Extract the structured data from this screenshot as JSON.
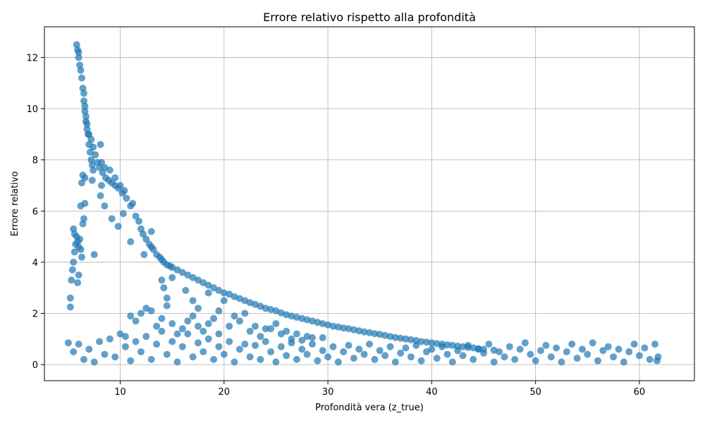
{
  "chart_data": {
    "type": "scatter",
    "title": "Errore relativo rispetto alla profondità",
    "xlabel": "Profondità vera (z_true)",
    "ylabel": "Errore relativo",
    "xlim": [
      2.7,
      65.3
    ],
    "ylim": [
      -0.63,
      13.2
    ],
    "xticks": [
      10,
      20,
      30,
      40,
      50,
      60
    ],
    "yticks": [
      0,
      2,
      4,
      6,
      8,
      10,
      12
    ],
    "grid": true,
    "marker_color": "#1f77b4",
    "marker_alpha": 0.7,
    "series": [
      {
        "points": [
          [
            5.8,
            12.5
          ],
          [
            5.9,
            12.3
          ],
          [
            6.0,
            12.0
          ],
          [
            6.1,
            11.7
          ],
          [
            6.3,
            11.2
          ],
          [
            6.4,
            10.8
          ],
          [
            6.5,
            10.3
          ],
          [
            6.6,
            9.9
          ],
          [
            6.7,
            9.5
          ],
          [
            6.8,
            9.2
          ],
          [
            7.0,
            9.0
          ],
          [
            7.2,
            8.8
          ],
          [
            7.4,
            8.5
          ],
          [
            7.6,
            8.2
          ],
          [
            7.8,
            7.9
          ],
          [
            8.0,
            7.7
          ],
          [
            8.3,
            7.5
          ],
          [
            8.6,
            7.3
          ],
          [
            8.9,
            7.2
          ],
          [
            9.2,
            7.1
          ],
          [
            9.5,
            7.0
          ],
          [
            9.8,
            6.9
          ],
          [
            10.2,
            6.7
          ],
          [
            10.6,
            6.5
          ],
          [
            11.0,
            6.2
          ],
          [
            11.5,
            5.8
          ],
          [
            12.0,
            5.3
          ],
          [
            12.5,
            4.9
          ],
          [
            13.0,
            4.6
          ],
          [
            13.5,
            4.3
          ],
          [
            14.0,
            4.1
          ],
          [
            14.5,
            3.9
          ],
          [
            15.0,
            3.8
          ],
          [
            16.0,
            3.6
          ],
          [
            17.0,
            3.4
          ],
          [
            18.0,
            3.2
          ],
          [
            19.0,
            3.0
          ],
          [
            20.0,
            2.8
          ],
          [
            21.0,
            2.65
          ],
          [
            22.0,
            2.5
          ],
          [
            23.0,
            2.35
          ],
          [
            24.0,
            2.2
          ],
          [
            25.0,
            2.1
          ],
          [
            26.0,
            1.95
          ],
          [
            27.0,
            1.85
          ],
          [
            28.0,
            1.75
          ],
          [
            29.0,
            1.65
          ],
          [
            30.0,
            1.55
          ],
          [
            31.0,
            1.47
          ],
          [
            32.0,
            1.4
          ],
          [
            33.0,
            1.32
          ],
          [
            34.0,
            1.25
          ],
          [
            35.0,
            1.18
          ],
          [
            36.0,
            1.1
          ],
          [
            37.0,
            1.03
          ],
          [
            38.0,
            0.97
          ],
          [
            39.0,
            0.9
          ],
          [
            40.0,
            0.85
          ],
          [
            41.0,
            0.8
          ],
          [
            42.0,
            0.75
          ],
          [
            43.0,
            0.7
          ],
          [
            44.0,
            0.65
          ],
          [
            45.0,
            0.6
          ],
          [
            46.0,
            0.56
          ],
          [
            6.0,
            12.2
          ],
          [
            6.2,
            11.5
          ],
          [
            6.5,
            10.6
          ],
          [
            6.6,
            10.1
          ],
          [
            6.7,
            9.7
          ],
          [
            6.8,
            9.4
          ],
          [
            6.9,
            9.0
          ],
          [
            7.0,
            8.6
          ],
          [
            7.1,
            8.3
          ],
          [
            7.2,
            8.0
          ],
          [
            7.3,
            7.8
          ],
          [
            7.4,
            7.6
          ],
          [
            8.2,
            7.9
          ],
          [
            8.5,
            7.7
          ],
          [
            9.0,
            7.6
          ],
          [
            9.5,
            7.3
          ],
          [
            10.0,
            7.0
          ],
          [
            10.4,
            6.8
          ],
          [
            11.2,
            6.3
          ],
          [
            11.8,
            5.6
          ],
          [
            12.2,
            5.1
          ],
          [
            12.8,
            4.7
          ],
          [
            13.2,
            4.5
          ],
          [
            13.8,
            4.2
          ],
          [
            14.2,
            4.0
          ],
          [
            14.8,
            3.85
          ],
          [
            15.5,
            3.7
          ],
          [
            16.5,
            3.5
          ],
          [
            17.5,
            3.3
          ],
          [
            18.5,
            3.1
          ],
          [
            19.5,
            2.9
          ],
          [
            20.5,
            2.75
          ],
          [
            21.5,
            2.58
          ],
          [
            22.5,
            2.42
          ],
          [
            23.5,
            2.28
          ],
          [
            24.5,
            2.15
          ],
          [
            25.5,
            2.02
          ],
          [
            26.5,
            1.9
          ],
          [
            27.5,
            1.8
          ],
          [
            28.5,
            1.7
          ],
          [
            29.5,
            1.6
          ],
          [
            30.5,
            1.5
          ],
          [
            31.5,
            1.43
          ],
          [
            32.5,
            1.36
          ],
          [
            33.5,
            1.28
          ],
          [
            34.5,
            1.21
          ],
          [
            35.5,
            1.14
          ],
          [
            36.5,
            1.06
          ],
          [
            37.5,
            1.0
          ],
          [
            38.5,
            0.94
          ],
          [
            39.5,
            0.88
          ],
          [
            40.5,
            0.82
          ],
          [
            41.5,
            0.77
          ],
          [
            42.5,
            0.72
          ],
          [
            43.5,
            0.67
          ],
          [
            44.5,
            0.62
          ],
          [
            5.3,
            3.3
          ],
          [
            5.4,
            3.7
          ],
          [
            5.5,
            4.0
          ],
          [
            5.6,
            4.4
          ],
          [
            5.7,
            4.7
          ],
          [
            5.8,
            5.0
          ],
          [
            5.9,
            4.8
          ],
          [
            6.0,
            4.6
          ],
          [
            6.1,
            4.9
          ],
          [
            6.2,
            4.5
          ],
          [
            6.3,
            4.2
          ],
          [
            5.5,
            5.3
          ],
          [
            5.6,
            5.1
          ],
          [
            6.4,
            5.5
          ],
          [
            6.5,
            5.7
          ],
          [
            6.6,
            6.3
          ],
          [
            6.2,
            6.2
          ],
          [
            6.3,
            7.1
          ],
          [
            6.4,
            7.4
          ],
          [
            6.6,
            7.3
          ],
          [
            7.3,
            7.2
          ],
          [
            7.5,
            4.3
          ],
          [
            8.1,
            8.6
          ],
          [
            8.2,
            7.0
          ],
          [
            8.1,
            6.6
          ],
          [
            8.5,
            6.2
          ],
          [
            9.2,
            5.7
          ],
          [
            9.8,
            5.4
          ],
          [
            10.3,
            5.9
          ],
          [
            11.0,
            4.8
          ],
          [
            12.3,
            4.3
          ],
          [
            13.0,
            5.2
          ],
          [
            14.0,
            3.3
          ],
          [
            14.2,
            3.0
          ],
          [
            14.5,
            2.6
          ],
          [
            15.0,
            3.4
          ],
          [
            16.3,
            2.9
          ],
          [
            17.0,
            2.5
          ],
          [
            17.5,
            2.2
          ],
          [
            18.5,
            2.8
          ],
          [
            19.5,
            2.1
          ],
          [
            20.0,
            2.5
          ],
          [
            21.0,
            1.9
          ],
          [
            22.0,
            2.0
          ],
          [
            23.0,
            1.5
          ],
          [
            24.0,
            1.4
          ],
          [
            25.0,
            1.6
          ],
          [
            26.0,
            1.3
          ],
          [
            27.0,
            1.2
          ],
          [
            28.0,
            1.1
          ],
          [
            29.5,
            1.05
          ],
          [
            5.2,
            2.6
          ],
          [
            5.2,
            2.25
          ],
          [
            5.9,
            3.2
          ],
          [
            6.0,
            3.5
          ],
          [
            10.5,
            1.1
          ],
          [
            11.0,
            1.9
          ],
          [
            11.5,
            1.7
          ],
          [
            12.0,
            2.0
          ],
          [
            12.5,
            2.2
          ],
          [
            13.0,
            2.1
          ],
          [
            13.5,
            1.5
          ],
          [
            14.0,
            1.8
          ],
          [
            14.5,
            2.3
          ],
          [
            15.0,
            1.6
          ],
          [
            15.5,
            1.2
          ],
          [
            16.0,
            1.4
          ],
          [
            16.5,
            1.7
          ],
          [
            17.0,
            1.9
          ],
          [
            17.5,
            1.5
          ],
          [
            18.0,
            1.3
          ],
          [
            18.5,
            1.6
          ],
          [
            19.0,
            1.8
          ],
          [
            19.5,
            1.2
          ],
          [
            20.5,
            1.5
          ],
          [
            21.5,
            1.7
          ],
          [
            22.5,
            1.3
          ],
          [
            23.5,
            1.1
          ],
          [
            24.5,
            1.4
          ],
          [
            25.5,
            1.2
          ],
          [
            26.5,
            1.0
          ],
          [
            27.5,
            0.95
          ],
          [
            28.5,
            1.05
          ],
          [
            5.0,
            0.85
          ],
          [
            5.5,
            0.5
          ],
          [
            6.0,
            0.8
          ],
          [
            6.5,
            0.2
          ],
          [
            7.0,
            0.6
          ],
          [
            7.5,
            0.1
          ],
          [
            8.0,
            0.9
          ],
          [
            8.5,
            0.4
          ],
          [
            9.0,
            1.0
          ],
          [
            9.5,
            0.3
          ],
          [
            10.0,
            1.2
          ],
          [
            10.5,
            0.7
          ],
          [
            11.0,
            0.15
          ],
          [
            11.5,
            0.9
          ],
          [
            12.0,
            0.5
          ],
          [
            12.5,
            1.1
          ],
          [
            13.0,
            0.2
          ],
          [
            13.5,
            0.8
          ],
          [
            14.0,
            1.3
          ],
          [
            14.5,
            0.4
          ],
          [
            15.0,
            0.9
          ],
          [
            15.5,
            0.1
          ],
          [
            16.0,
            0.7
          ],
          [
            16.5,
            1.2
          ],
          [
            17.0,
            0.3
          ],
          [
            17.5,
            0.85
          ],
          [
            18.0,
            0.5
          ],
          [
            18.5,
            1.0
          ],
          [
            19.0,
            0.2
          ],
          [
            19.5,
            0.7
          ],
          [
            20.0,
            0.4
          ],
          [
            20.5,
            0.9
          ],
          [
            21.0,
            0.1
          ],
          [
            21.5,
            0.6
          ],
          [
            22.0,
            0.8
          ],
          [
            22.5,
            0.3
          ],
          [
            23.0,
            0.75
          ],
          [
            23.5,
            0.2
          ],
          [
            24.0,
            0.9
          ],
          [
            24.5,
            0.5
          ],
          [
            25.0,
            0.1
          ],
          [
            25.5,
            0.7
          ],
          [
            26.0,
            0.35
          ],
          [
            26.5,
            0.85
          ],
          [
            27.0,
            0.2
          ],
          [
            27.5,
            0.6
          ],
          [
            28.0,
            0.4
          ],
          [
            28.5,
            0.8
          ],
          [
            29.0,
            0.15
          ],
          [
            29.5,
            0.55
          ],
          [
            30.0,
            0.3
          ],
          [
            30.5,
            0.7
          ],
          [
            31.0,
            0.1
          ],
          [
            31.5,
            0.5
          ],
          [
            32.0,
            0.75
          ],
          [
            32.5,
            0.25
          ],
          [
            33.0,
            0.6
          ],
          [
            33.5,
            0.4
          ],
          [
            34.0,
            0.8
          ],
          [
            34.5,
            0.2
          ],
          [
            35.0,
            0.55
          ],
          [
            35.5,
            0.35
          ],
          [
            36.0,
            0.7
          ],
          [
            36.5,
            0.1
          ],
          [
            37.0,
            0.45
          ],
          [
            37.5,
            0.65
          ],
          [
            38.0,
            0.3
          ],
          [
            38.5,
            0.75
          ],
          [
            39.0,
            0.15
          ],
          [
            39.5,
            0.5
          ],
          [
            40.0,
            0.6
          ],
          [
            40.5,
            0.25
          ],
          [
            41.0,
            0.7
          ],
          [
            41.5,
            0.4
          ],
          [
            42.0,
            0.1
          ],
          [
            42.5,
            0.55
          ],
          [
            43.0,
            0.35
          ],
          [
            43.5,
            0.75
          ],
          [
            44.0,
            0.2
          ],
          [
            44.5,
            0.6
          ],
          [
            45.0,
            0.45
          ],
          [
            45.5,
            0.8
          ],
          [
            46.0,
            0.1
          ],
          [
            46.5,
            0.5
          ],
          [
            47.0,
            0.3
          ],
          [
            47.5,
            0.7
          ],
          [
            48.0,
            0.2
          ],
          [
            48.5,
            0.6
          ],
          [
            49.0,
            0.85
          ],
          [
            49.5,
            0.4
          ],
          [
            50.0,
            0.15
          ],
          [
            50.5,
            0.55
          ],
          [
            51.0,
            0.75
          ],
          [
            51.5,
            0.3
          ],
          [
            52.0,
            0.65
          ],
          [
            52.5,
            0.1
          ],
          [
            53.0,
            0.5
          ],
          [
            53.5,
            0.8
          ],
          [
            54.0,
            0.25
          ],
          [
            54.5,
            0.6
          ],
          [
            55.0,
            0.4
          ],
          [
            55.5,
            0.85
          ],
          [
            56.0,
            0.15
          ],
          [
            56.5,
            0.55
          ],
          [
            57.0,
            0.7
          ],
          [
            57.5,
            0.3
          ],
          [
            58.0,
            0.6
          ],
          [
            58.5,
            0.1
          ],
          [
            59.0,
            0.5
          ],
          [
            59.5,
            0.8
          ],
          [
            60.0,
            0.35
          ],
          [
            60.5,
            0.65
          ],
          [
            61.0,
            0.2
          ],
          [
            61.5,
            0.8
          ],
          [
            61.8,
            0.3
          ],
          [
            61.7,
            0.15
          ]
        ]
      }
    ]
  }
}
